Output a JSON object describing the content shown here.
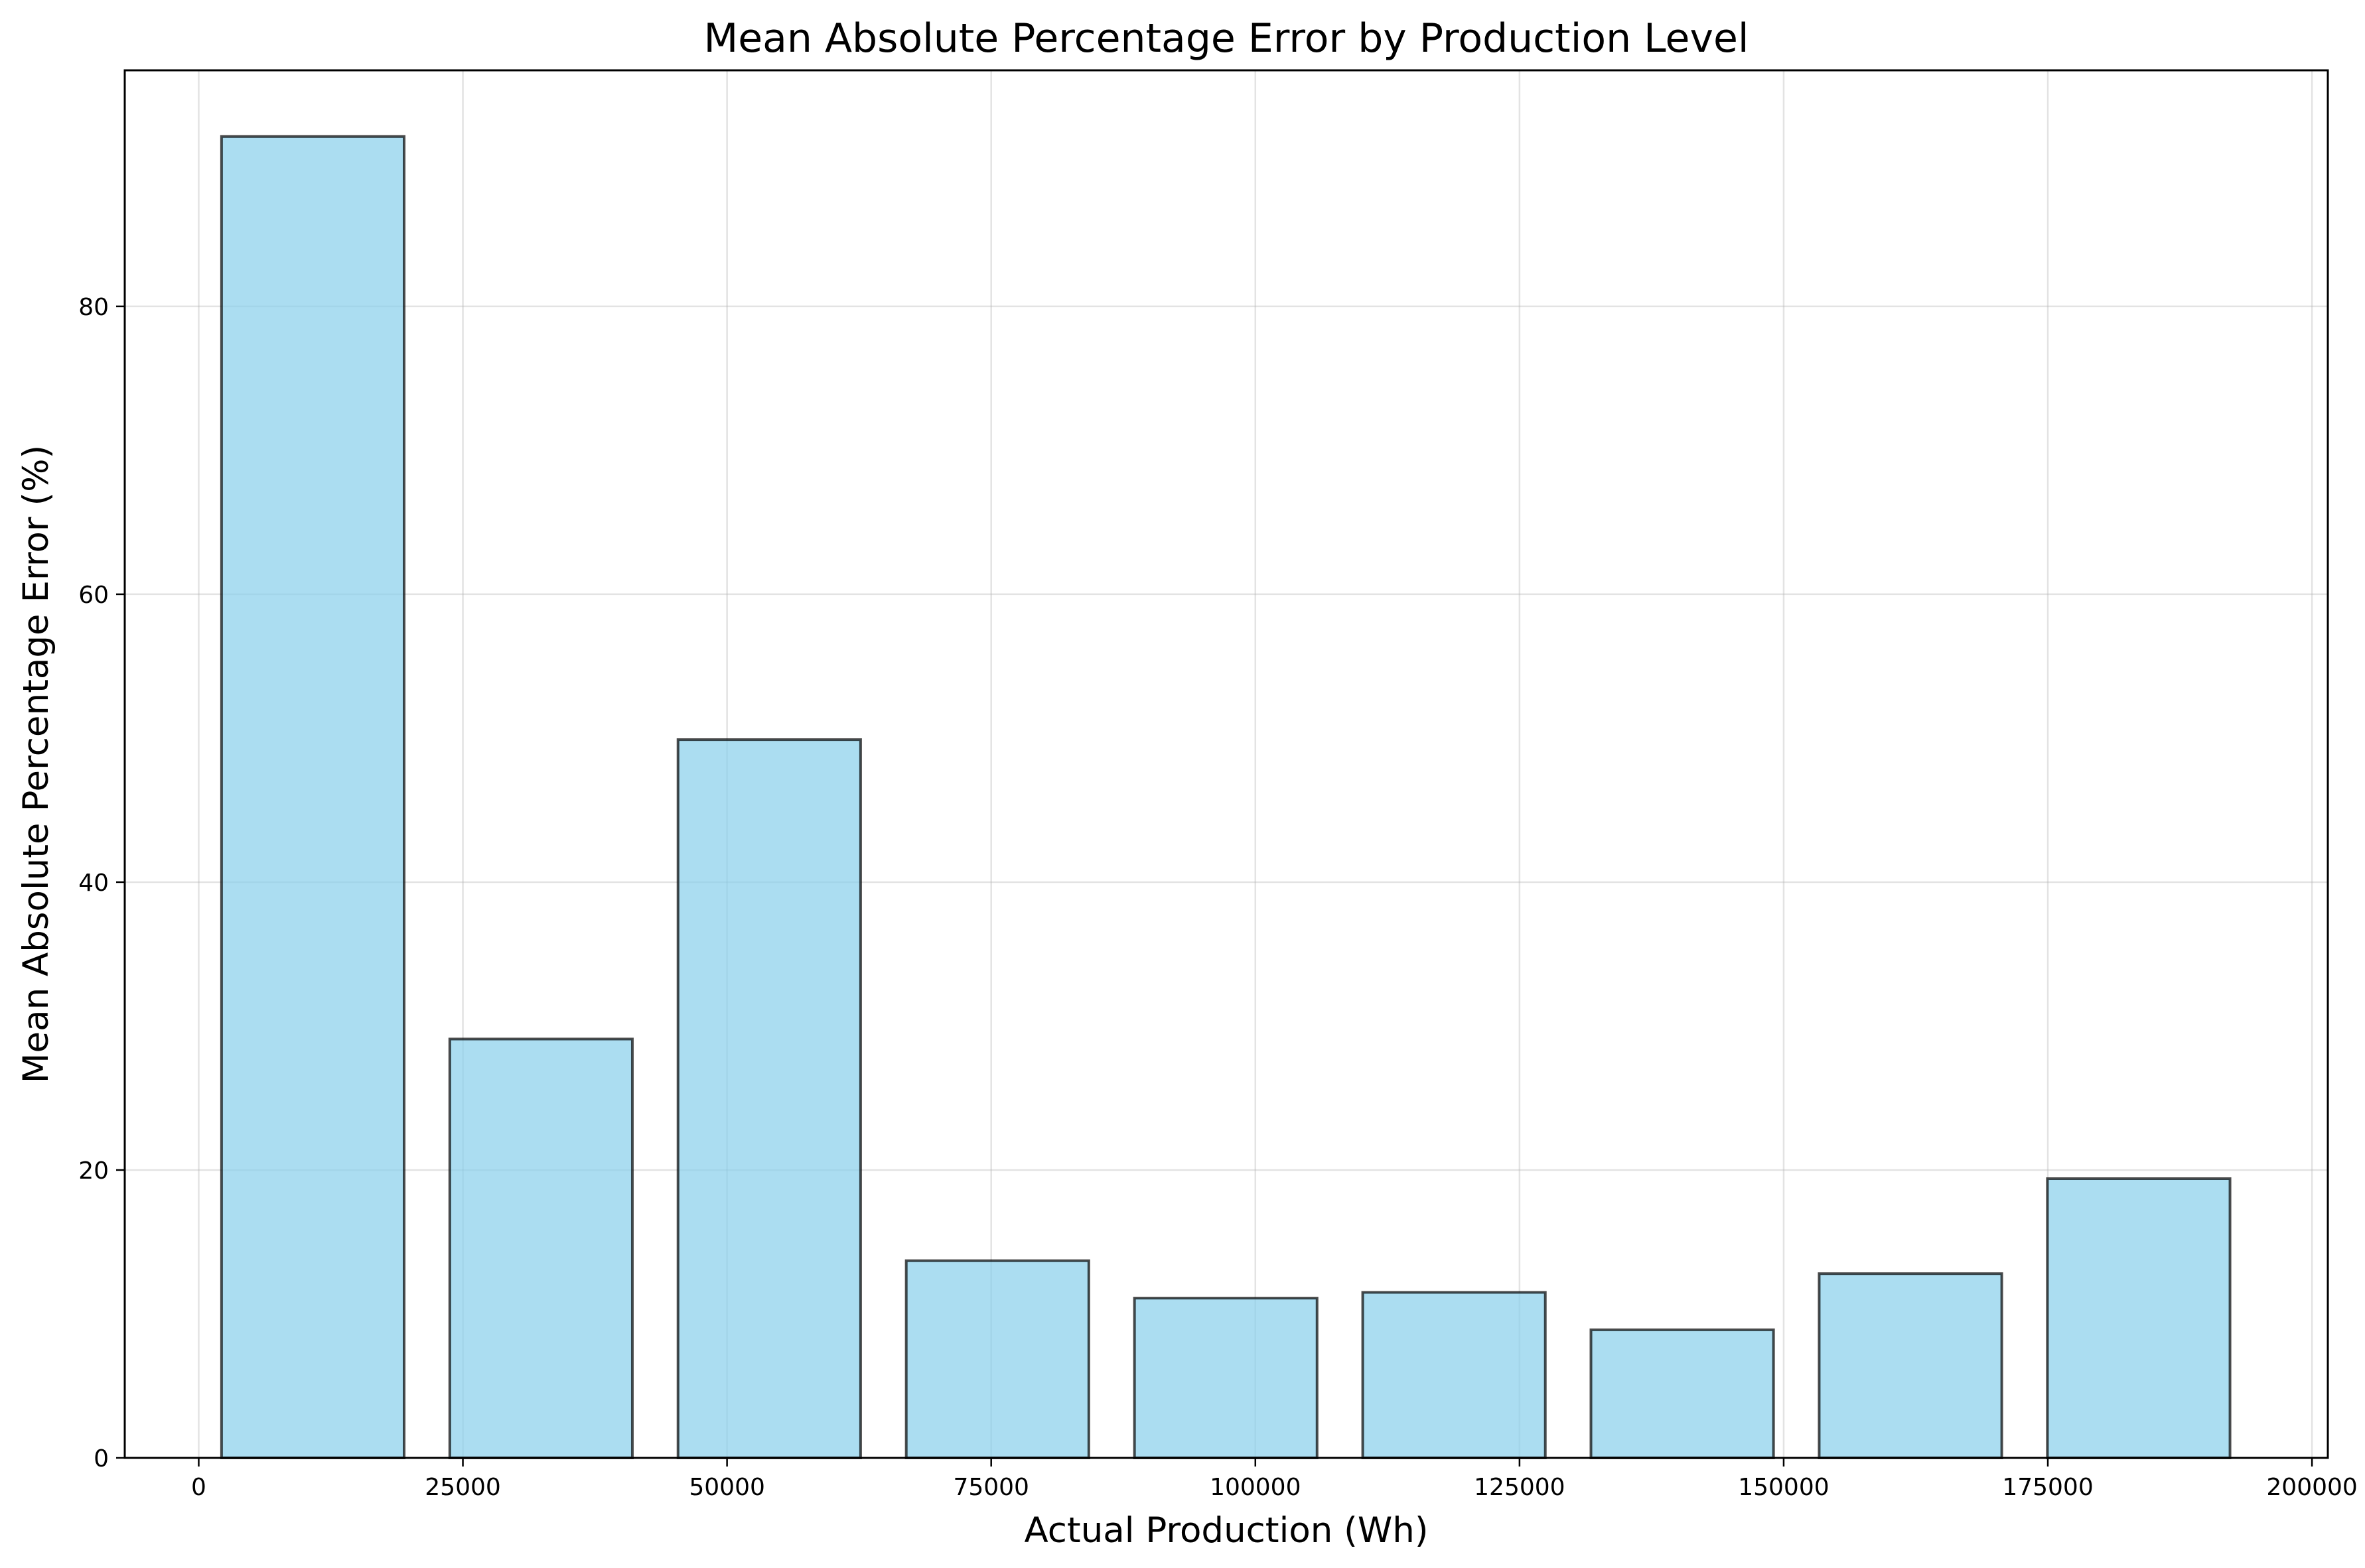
{
  "chart_data": {
    "type": "bar",
    "title": "Mean Absolute Percentage Error by Production Level",
    "xlabel": "Actual Production (Wh)",
    "ylabel": "Mean Absolute Percentage Error (%)",
    "x": [
      10800,
      32400,
      54000,
      75600,
      97200,
      118800,
      140400,
      162000,
      183600
    ],
    "bin_width": 17280,
    "values": [
      91.8,
      29.1,
      49.9,
      13.7,
      11.1,
      11.5,
      8.9,
      12.8,
      19.4
    ],
    "xlim": [
      -7000,
      201500
    ],
    "ylim": [
      0,
      96.4
    ],
    "xticks": [
      0,
      25000,
      50000,
      75000,
      100000,
      125000,
      150000,
      175000,
      200000
    ],
    "yticks": [
      0,
      20,
      40,
      60,
      80
    ],
    "grid": true,
    "bar_color": "#87ceeb",
    "edge_color": "#000000"
  }
}
